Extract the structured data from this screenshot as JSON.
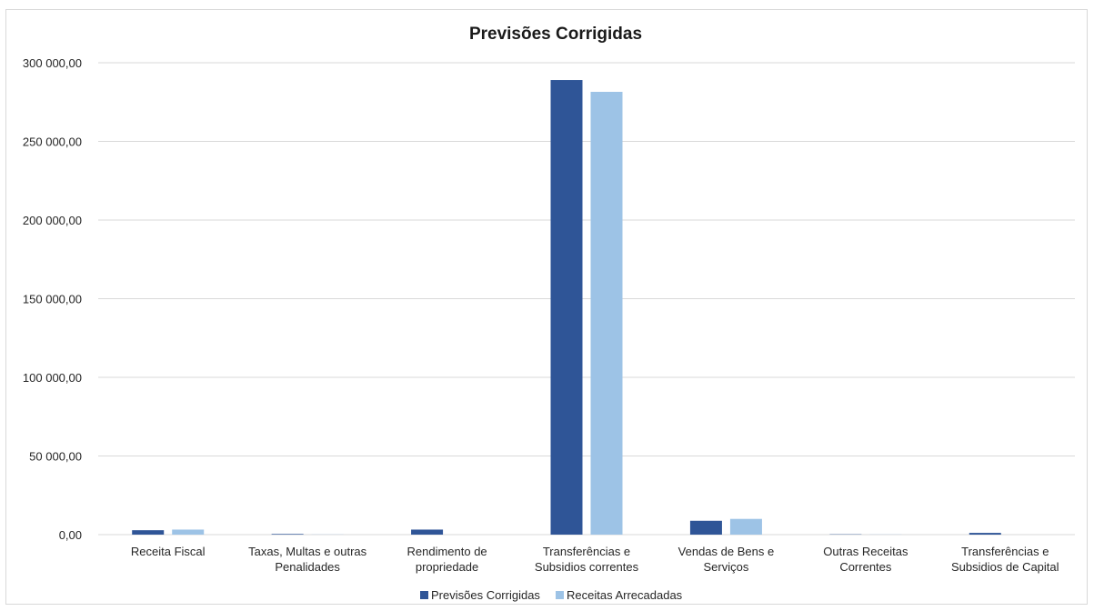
{
  "chart_data": {
    "type": "bar",
    "title": "Previsões Corrigidas",
    "categories": [
      [
        "Receita Fiscal"
      ],
      [
        "Taxas, Multas e outras",
        "Penalidades"
      ],
      [
        "Rendimento de",
        "propriedade"
      ],
      [
        "Transferências e",
        "Subsidios correntes"
      ],
      [
        "Vendas de Bens e",
        "Serviços"
      ],
      [
        "Outras Receitas",
        "Correntes"
      ],
      [
        "Transferências e",
        "Subsidios de Capital"
      ]
    ],
    "series": [
      {
        "name": "Previsões Corrigidas",
        "color": "#2f5597",
        "values": [
          2800,
          400,
          3200,
          289000,
          8800,
          200,
          1100
        ]
      },
      {
        "name": "Receitas Arrecadadas",
        "color": "#9dc3e6",
        "values": [
          3200,
          100,
          0,
          281500,
          10000,
          100,
          0
        ]
      }
    ],
    "ylim": [
      0,
      300000
    ],
    "yticks": [
      0,
      50000,
      100000,
      150000,
      200000,
      250000,
      300000
    ],
    "ytick_labels": [
      "0,00",
      "50 000,00",
      "100 000,00",
      "150 000,00",
      "200 000,00",
      "250 000,00",
      "300 000,00"
    ],
    "grid": true,
    "legend": "bottom"
  }
}
